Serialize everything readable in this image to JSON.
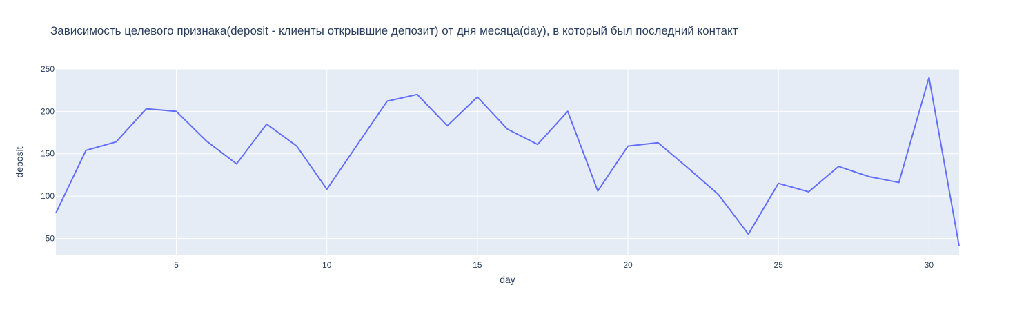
{
  "chart_data": {
    "type": "line",
    "title": "Зависимость целевого признака(deposit - клиенты открывшие депозит) от дня месяца(day), в который был последний контакт",
    "xlabel": "day",
    "ylabel": "deposit",
    "xlim": [
      1,
      31
    ],
    "ylim": [
      30,
      250
    ],
    "xticks": [
      5,
      10,
      15,
      20,
      25,
      30
    ],
    "yticks": [
      50,
      100,
      150,
      200,
      250
    ],
    "grid": true,
    "series": [
      {
        "color": "#636efa",
        "x": [
          1,
          2,
          3,
          4,
          5,
          6,
          7,
          8,
          9,
          10,
          11,
          12,
          13,
          14,
          15,
          16,
          17,
          18,
          19,
          20,
          21,
          22,
          23,
          24,
          25,
          26,
          27,
          28,
          29,
          30,
          31
        ],
        "y": [
          80,
          154,
          164,
          203,
          200,
          165,
          138,
          185,
          159,
          108,
          160,
          212,
          220,
          183,
          217,
          179,
          161,
          200,
          106,
          159,
          163,
          133,
          102,
          55,
          115,
          105,
          135,
          123,
          116,
          240,
          41
        ]
      }
    ],
    "colors": {
      "plot_bg": "#e5ecf6",
      "grid": "#ffffff",
      "text": "#2a3f5f",
      "line": "#636efa"
    }
  }
}
